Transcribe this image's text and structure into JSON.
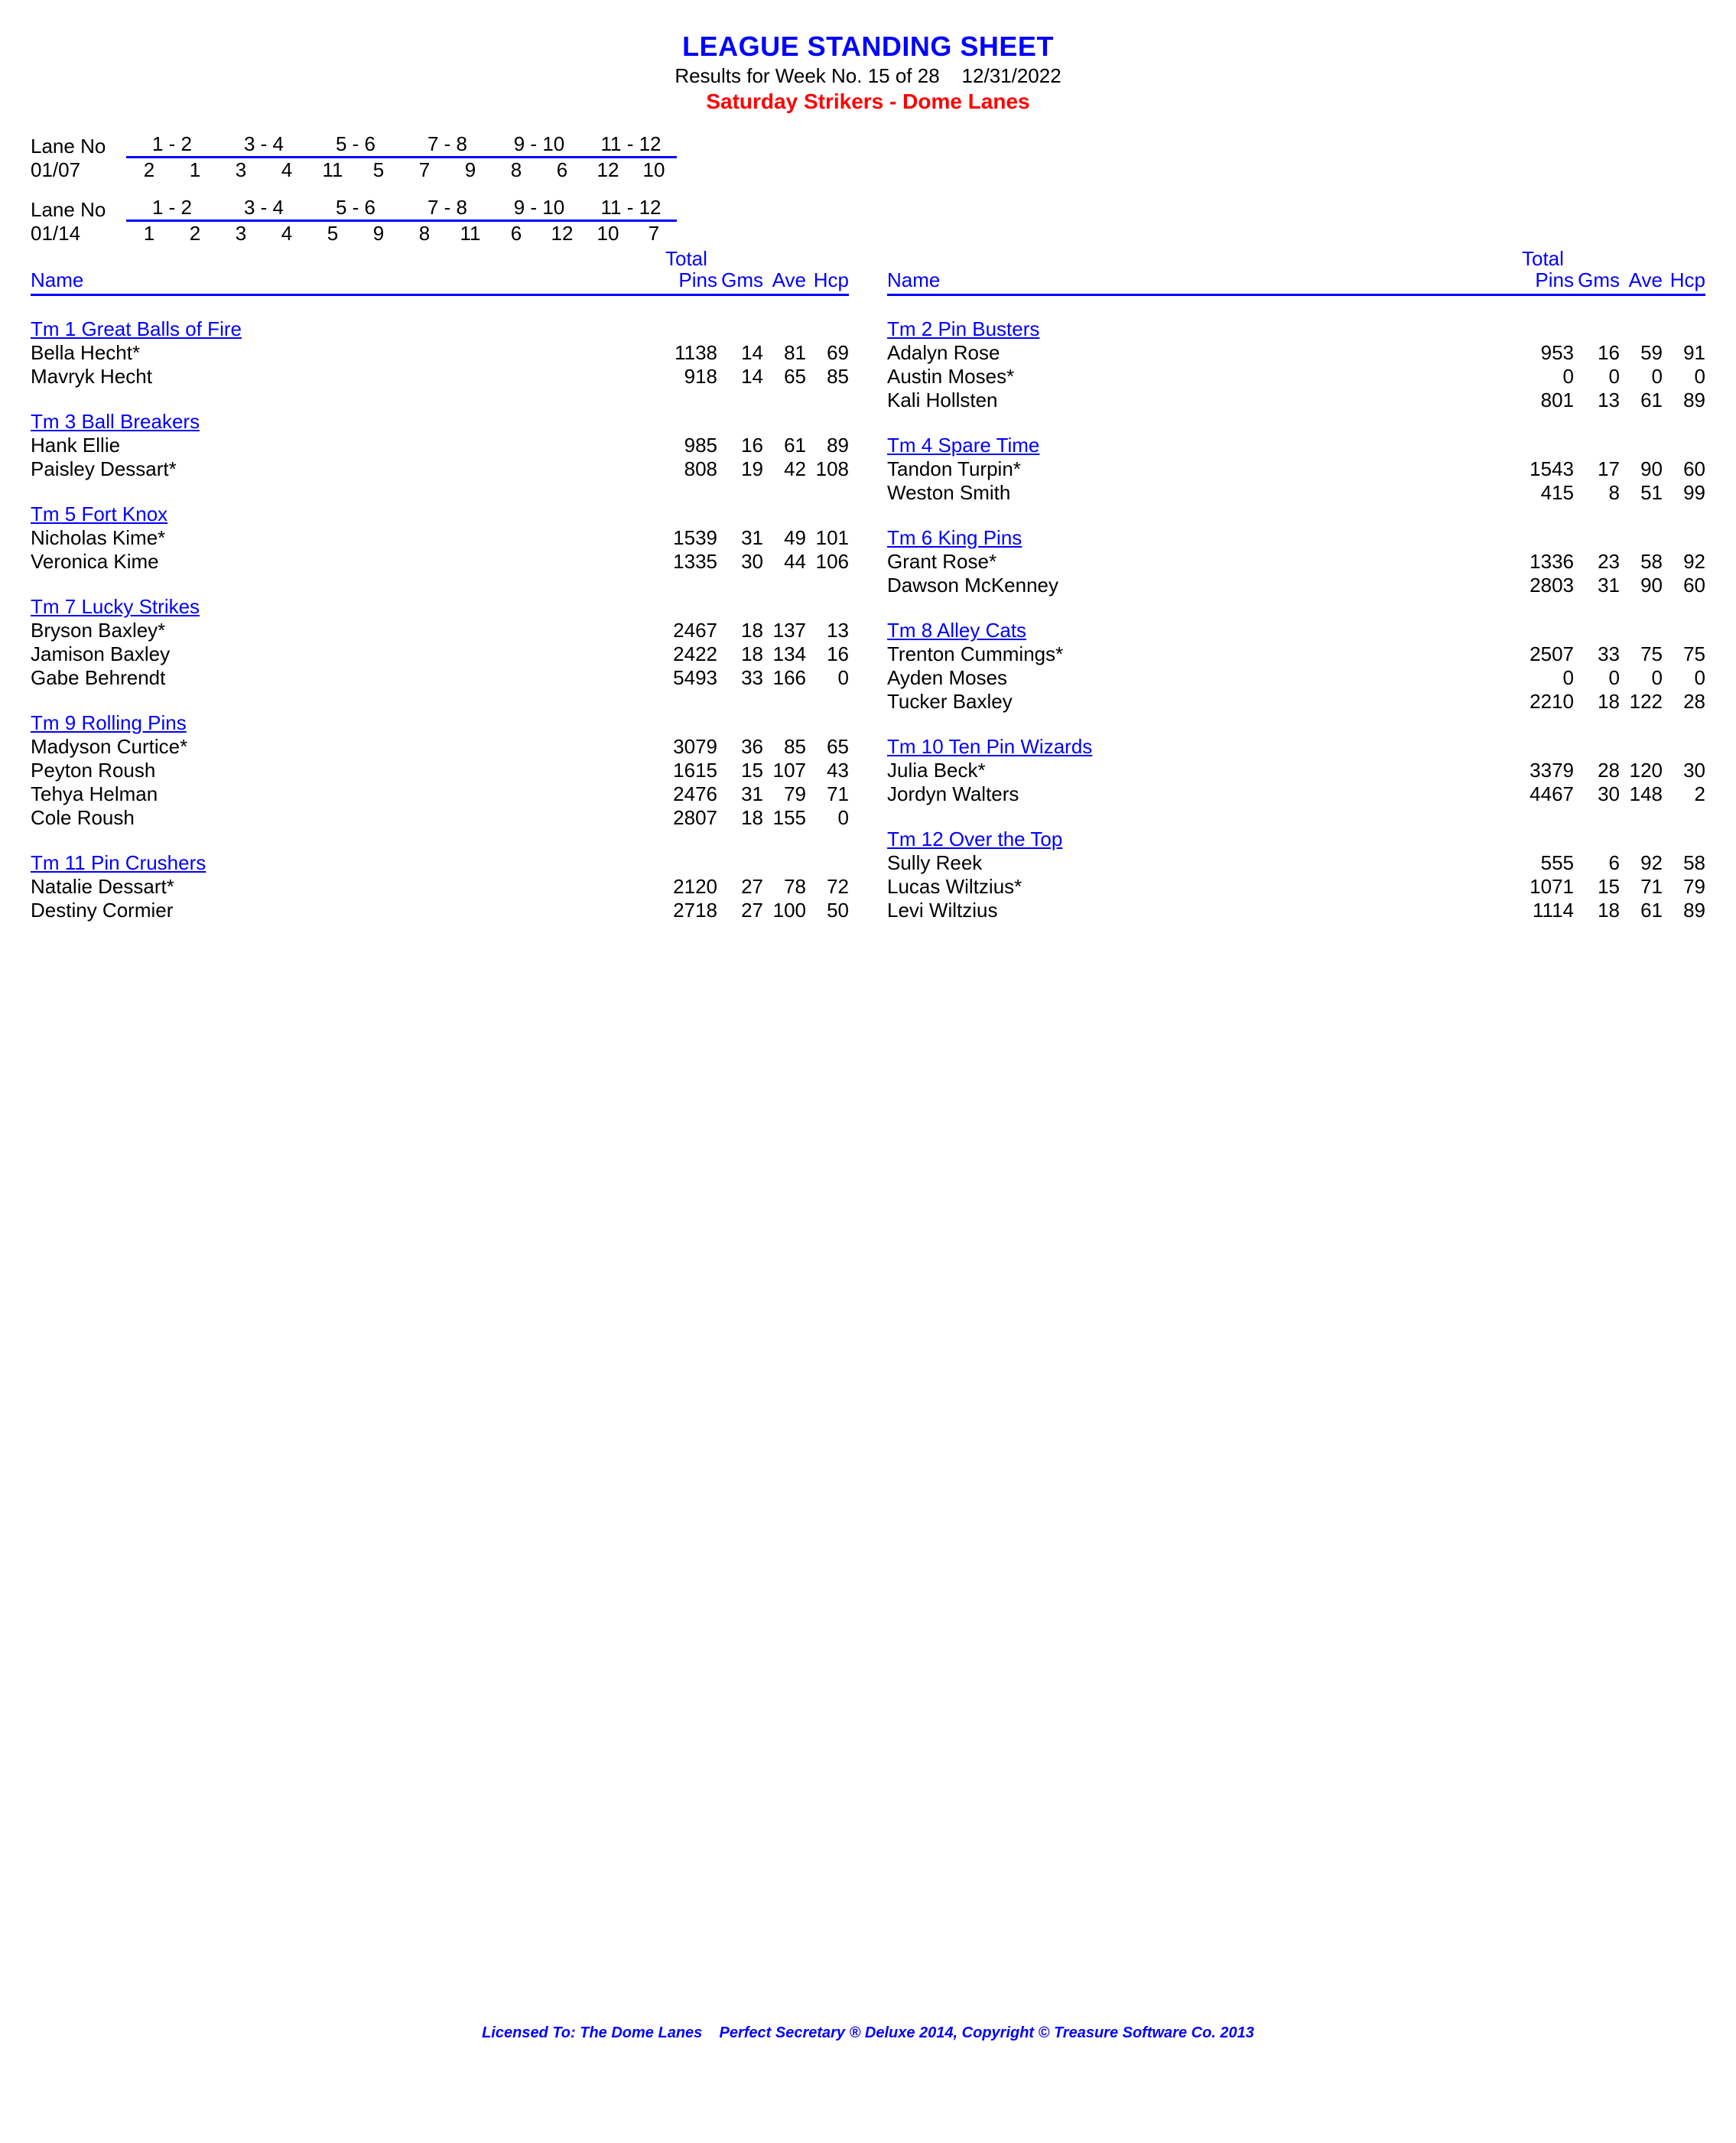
{
  "header": {
    "title": "LEAGUE STANDING SHEET",
    "subtitle": "Results for Week No. 15 of 28    12/31/2022",
    "league": "Saturday Strikers - Dome Lanes"
  },
  "lane_assignments": [
    {
      "label": "Lane No",
      "pairs": [
        "1 -  2",
        "3 -  4",
        "5 -  6",
        "7 -  8",
        "9 - 10",
        "11 - 12"
      ],
      "date": "01/07",
      "teams": [
        [
          "2",
          "1"
        ],
        [
          "3",
          "4"
        ],
        [
          "11",
          "5"
        ],
        [
          "7",
          "9"
        ],
        [
          "8",
          "6"
        ],
        [
          "12",
          "10"
        ]
      ]
    },
    {
      "label": "Lane No",
      "pairs": [
        "1 -  2",
        "3 -  4",
        "5 -  6",
        "7 -  8",
        "9 - 10",
        "11 - 12"
      ],
      "date": "01/14",
      "teams": [
        [
          "1",
          "2"
        ],
        [
          "3",
          "4"
        ],
        [
          "5",
          "9"
        ],
        [
          "8",
          "11"
        ],
        [
          "6",
          "12"
        ],
        [
          "10",
          "7"
        ]
      ]
    }
  ],
  "column_headers": {
    "name": "Name",
    "total": "Total",
    "pins": "Pins",
    "gms": "Gms",
    "ave": "Ave",
    "hcp": "Hcp"
  },
  "left_teams": [
    {
      "name": "Tm 1 Great Balls of Fire",
      "players": [
        {
          "name": "Bella Hecht*",
          "pins": "1138",
          "gms": "14",
          "ave": "81",
          "hcp": "69"
        },
        {
          "name": "Mavryk Hecht",
          "pins": "918",
          "gms": "14",
          "ave": "65",
          "hcp": "85"
        }
      ]
    },
    {
      "name": "Tm 3 Ball Breakers",
      "players": [
        {
          "name": "Hank Ellie",
          "pins": "985",
          "gms": "16",
          "ave": "61",
          "hcp": "89"
        },
        {
          "name": "Paisley Dessart*",
          "pins": "808",
          "gms": "19",
          "ave": "42",
          "hcp": "108"
        }
      ]
    },
    {
      "name": "Tm 5 Fort Knox",
      "players": [
        {
          "name": "Nicholas Kime*",
          "pins": "1539",
          "gms": "31",
          "ave": "49",
          "hcp": "101"
        },
        {
          "name": "Veronica Kime",
          "pins": "1335",
          "gms": "30",
          "ave": "44",
          "hcp": "106"
        }
      ]
    },
    {
      "name": "Tm 7 Lucky Strikes",
      "players": [
        {
          "name": "Bryson Baxley*",
          "pins": "2467",
          "gms": "18",
          "ave": "137",
          "hcp": "13"
        },
        {
          "name": "Jamison Baxley",
          "pins": "2422",
          "gms": "18",
          "ave": "134",
          "hcp": "16"
        },
        {
          "name": "Gabe Behrendt",
          "pins": "5493",
          "gms": "33",
          "ave": "166",
          "hcp": "0"
        }
      ]
    },
    {
      "name": "Tm 9 Rolling Pins",
      "players": [
        {
          "name": "Madyson Curtice*",
          "pins": "3079",
          "gms": "36",
          "ave": "85",
          "hcp": "65"
        },
        {
          "name": "Peyton Roush",
          "pins": "1615",
          "gms": "15",
          "ave": "107",
          "hcp": "43"
        },
        {
          "name": "Tehya Helman",
          "pins": "2476",
          "gms": "31",
          "ave": "79",
          "hcp": "71"
        },
        {
          "name": "Cole Roush",
          "pins": "2807",
          "gms": "18",
          "ave": "155",
          "hcp": "0"
        }
      ]
    },
    {
      "name": "Tm 11 Pin Crushers",
      "players": [
        {
          "name": "Natalie Dessart*",
          "pins": "2120",
          "gms": "27",
          "ave": "78",
          "hcp": "72"
        },
        {
          "name": "Destiny Cormier",
          "pins": "2718",
          "gms": "27",
          "ave": "100",
          "hcp": "50"
        }
      ]
    }
  ],
  "right_teams": [
    {
      "name": "Tm 2 Pin Busters",
      "players": [
        {
          "name": "Adalyn Rose",
          "pins": "953",
          "gms": "16",
          "ave": "59",
          "hcp": "91"
        },
        {
          "name": "Austin Moses*",
          "pins": "0",
          "gms": "0",
          "ave": "0",
          "hcp": "0"
        },
        {
          "name": "Kali Hollsten",
          "pins": "801",
          "gms": "13",
          "ave": "61",
          "hcp": "89"
        }
      ]
    },
    {
      "name": "Tm 4 Spare Time",
      "players": [
        {
          "name": "Tandon Turpin*",
          "pins": "1543",
          "gms": "17",
          "ave": "90",
          "hcp": "60"
        },
        {
          "name": "Weston Smith",
          "pins": "415",
          "gms": "8",
          "ave": "51",
          "hcp": "99"
        }
      ]
    },
    {
      "name": "Tm 6 King Pins",
      "players": [
        {
          "name": "Grant Rose*",
          "pins": "1336",
          "gms": "23",
          "ave": "58",
          "hcp": "92"
        },
        {
          "name": "Dawson McKenney",
          "pins": "2803",
          "gms": "31",
          "ave": "90",
          "hcp": "60"
        }
      ]
    },
    {
      "name": "Tm 8 Alley Cats",
      "players": [
        {
          "name": "Trenton Cummings*",
          "pins": "2507",
          "gms": "33",
          "ave": "75",
          "hcp": "75"
        },
        {
          "name": "Ayden Moses",
          "pins": "0",
          "gms": "0",
          "ave": "0",
          "hcp": "0"
        },
        {
          "name": "Tucker Baxley",
          "pins": "2210",
          "gms": "18",
          "ave": "122",
          "hcp": "28"
        }
      ]
    },
    {
      "name": "Tm 10 Ten Pin Wizards",
      "players": [
        {
          "name": "Julia Beck*",
          "pins": "3379",
          "gms": "28",
          "ave": "120",
          "hcp": "30"
        },
        {
          "name": "Jordyn Walters",
          "pins": "4467",
          "gms": "30",
          "ave": "148",
          "hcp": "2"
        }
      ]
    },
    {
      "name": "Tm 12 Over the Top",
      "players": [
        {
          "name": "Sully Reek",
          "pins": "555",
          "gms": "6",
          "ave": "92",
          "hcp": "58"
        },
        {
          "name": "Lucas Wiltzius*",
          "pins": "1071",
          "gms": "15",
          "ave": "71",
          "hcp": "79"
        },
        {
          "name": "Levi Wiltzius",
          "pins": "1114",
          "gms": "18",
          "ave": "61",
          "hcp": "89"
        }
      ]
    }
  ],
  "footer": "Licensed To: The Dome Lanes    Perfect Secretary ® Deluxe  2014, Copyright © Treasure Software Co. 2013"
}
